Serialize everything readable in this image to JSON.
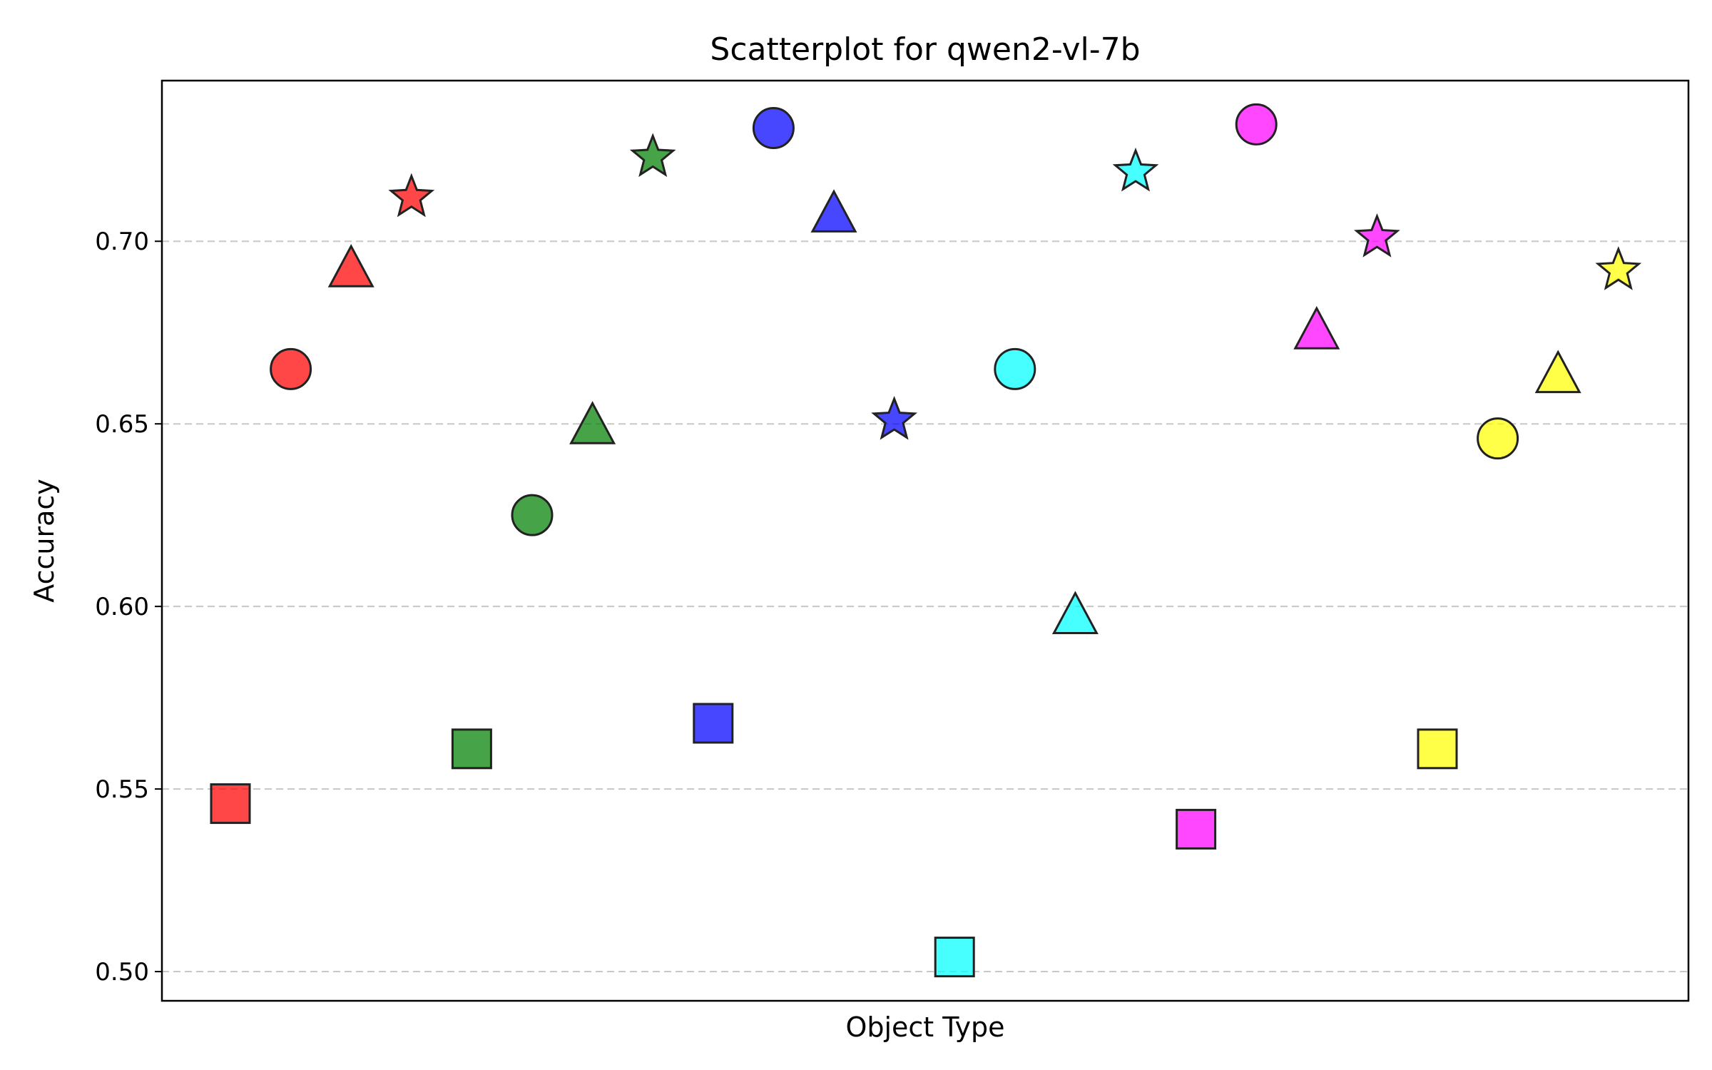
{
  "chart_data": {
    "type": "scatter",
    "title": "Scatterplot for qwen2-vl-7b",
    "xlabel": "Object Type",
    "ylabel": "Accuracy",
    "ylim": [
      0.492,
      0.744
    ],
    "yticks": [
      "0.50",
      "0.55",
      "0.60",
      "0.65",
      "0.70"
    ],
    "ytick_values": [
      0.5,
      0.55,
      0.6,
      0.65,
      0.7
    ],
    "grid": "horizontal dashed",
    "colors": {
      "red": "#ff0000",
      "green": "#008000",
      "blue": "#0000ff",
      "cyan": "#00ffff",
      "magenta": "#ff00ff",
      "yellow": "#ffff00"
    },
    "points": [
      {
        "index": 0,
        "color": "red",
        "marker": "square",
        "y": 0.546
      },
      {
        "index": 1,
        "color": "red",
        "marker": "circle",
        "y": 0.665
      },
      {
        "index": 2,
        "color": "red",
        "marker": "triangle",
        "y": 0.692
      },
      {
        "index": 3,
        "color": "red",
        "marker": "star",
        "y": 0.712
      },
      {
        "index": 4,
        "color": "green",
        "marker": "square",
        "y": 0.561
      },
      {
        "index": 5,
        "color": "green",
        "marker": "circle",
        "y": 0.625
      },
      {
        "index": 6,
        "color": "green",
        "marker": "triangle",
        "y": 0.649
      },
      {
        "index": 7,
        "color": "green",
        "marker": "star",
        "y": 0.723
      },
      {
        "index": 8,
        "color": "blue",
        "marker": "square",
        "y": 0.568
      },
      {
        "index": 9,
        "color": "blue",
        "marker": "circle",
        "y": 0.731
      },
      {
        "index": 10,
        "color": "blue",
        "marker": "triangle",
        "y": 0.707
      },
      {
        "index": 11,
        "color": "blue",
        "marker": "star",
        "y": 0.651
      },
      {
        "index": 12,
        "color": "cyan",
        "marker": "square",
        "y": 0.504
      },
      {
        "index": 13,
        "color": "cyan",
        "marker": "circle",
        "y": 0.665
      },
      {
        "index": 14,
        "color": "cyan",
        "marker": "triangle",
        "y": 0.597
      },
      {
        "index": 15,
        "color": "cyan",
        "marker": "star",
        "y": 0.719
      },
      {
        "index": 16,
        "color": "magenta",
        "marker": "square",
        "y": 0.539
      },
      {
        "index": 17,
        "color": "magenta",
        "marker": "circle",
        "y": 0.732
      },
      {
        "index": 18,
        "color": "magenta",
        "marker": "triangle",
        "y": 0.675
      },
      {
        "index": 19,
        "color": "magenta",
        "marker": "star",
        "y": 0.701
      },
      {
        "index": 20,
        "color": "yellow",
        "marker": "square",
        "y": 0.561
      },
      {
        "index": 21,
        "color": "yellow",
        "marker": "circle",
        "y": 0.646
      },
      {
        "index": 22,
        "color": "yellow",
        "marker": "triangle",
        "y": 0.663
      },
      {
        "index": 23,
        "color": "yellow",
        "marker": "star",
        "y": 0.692
      }
    ]
  }
}
